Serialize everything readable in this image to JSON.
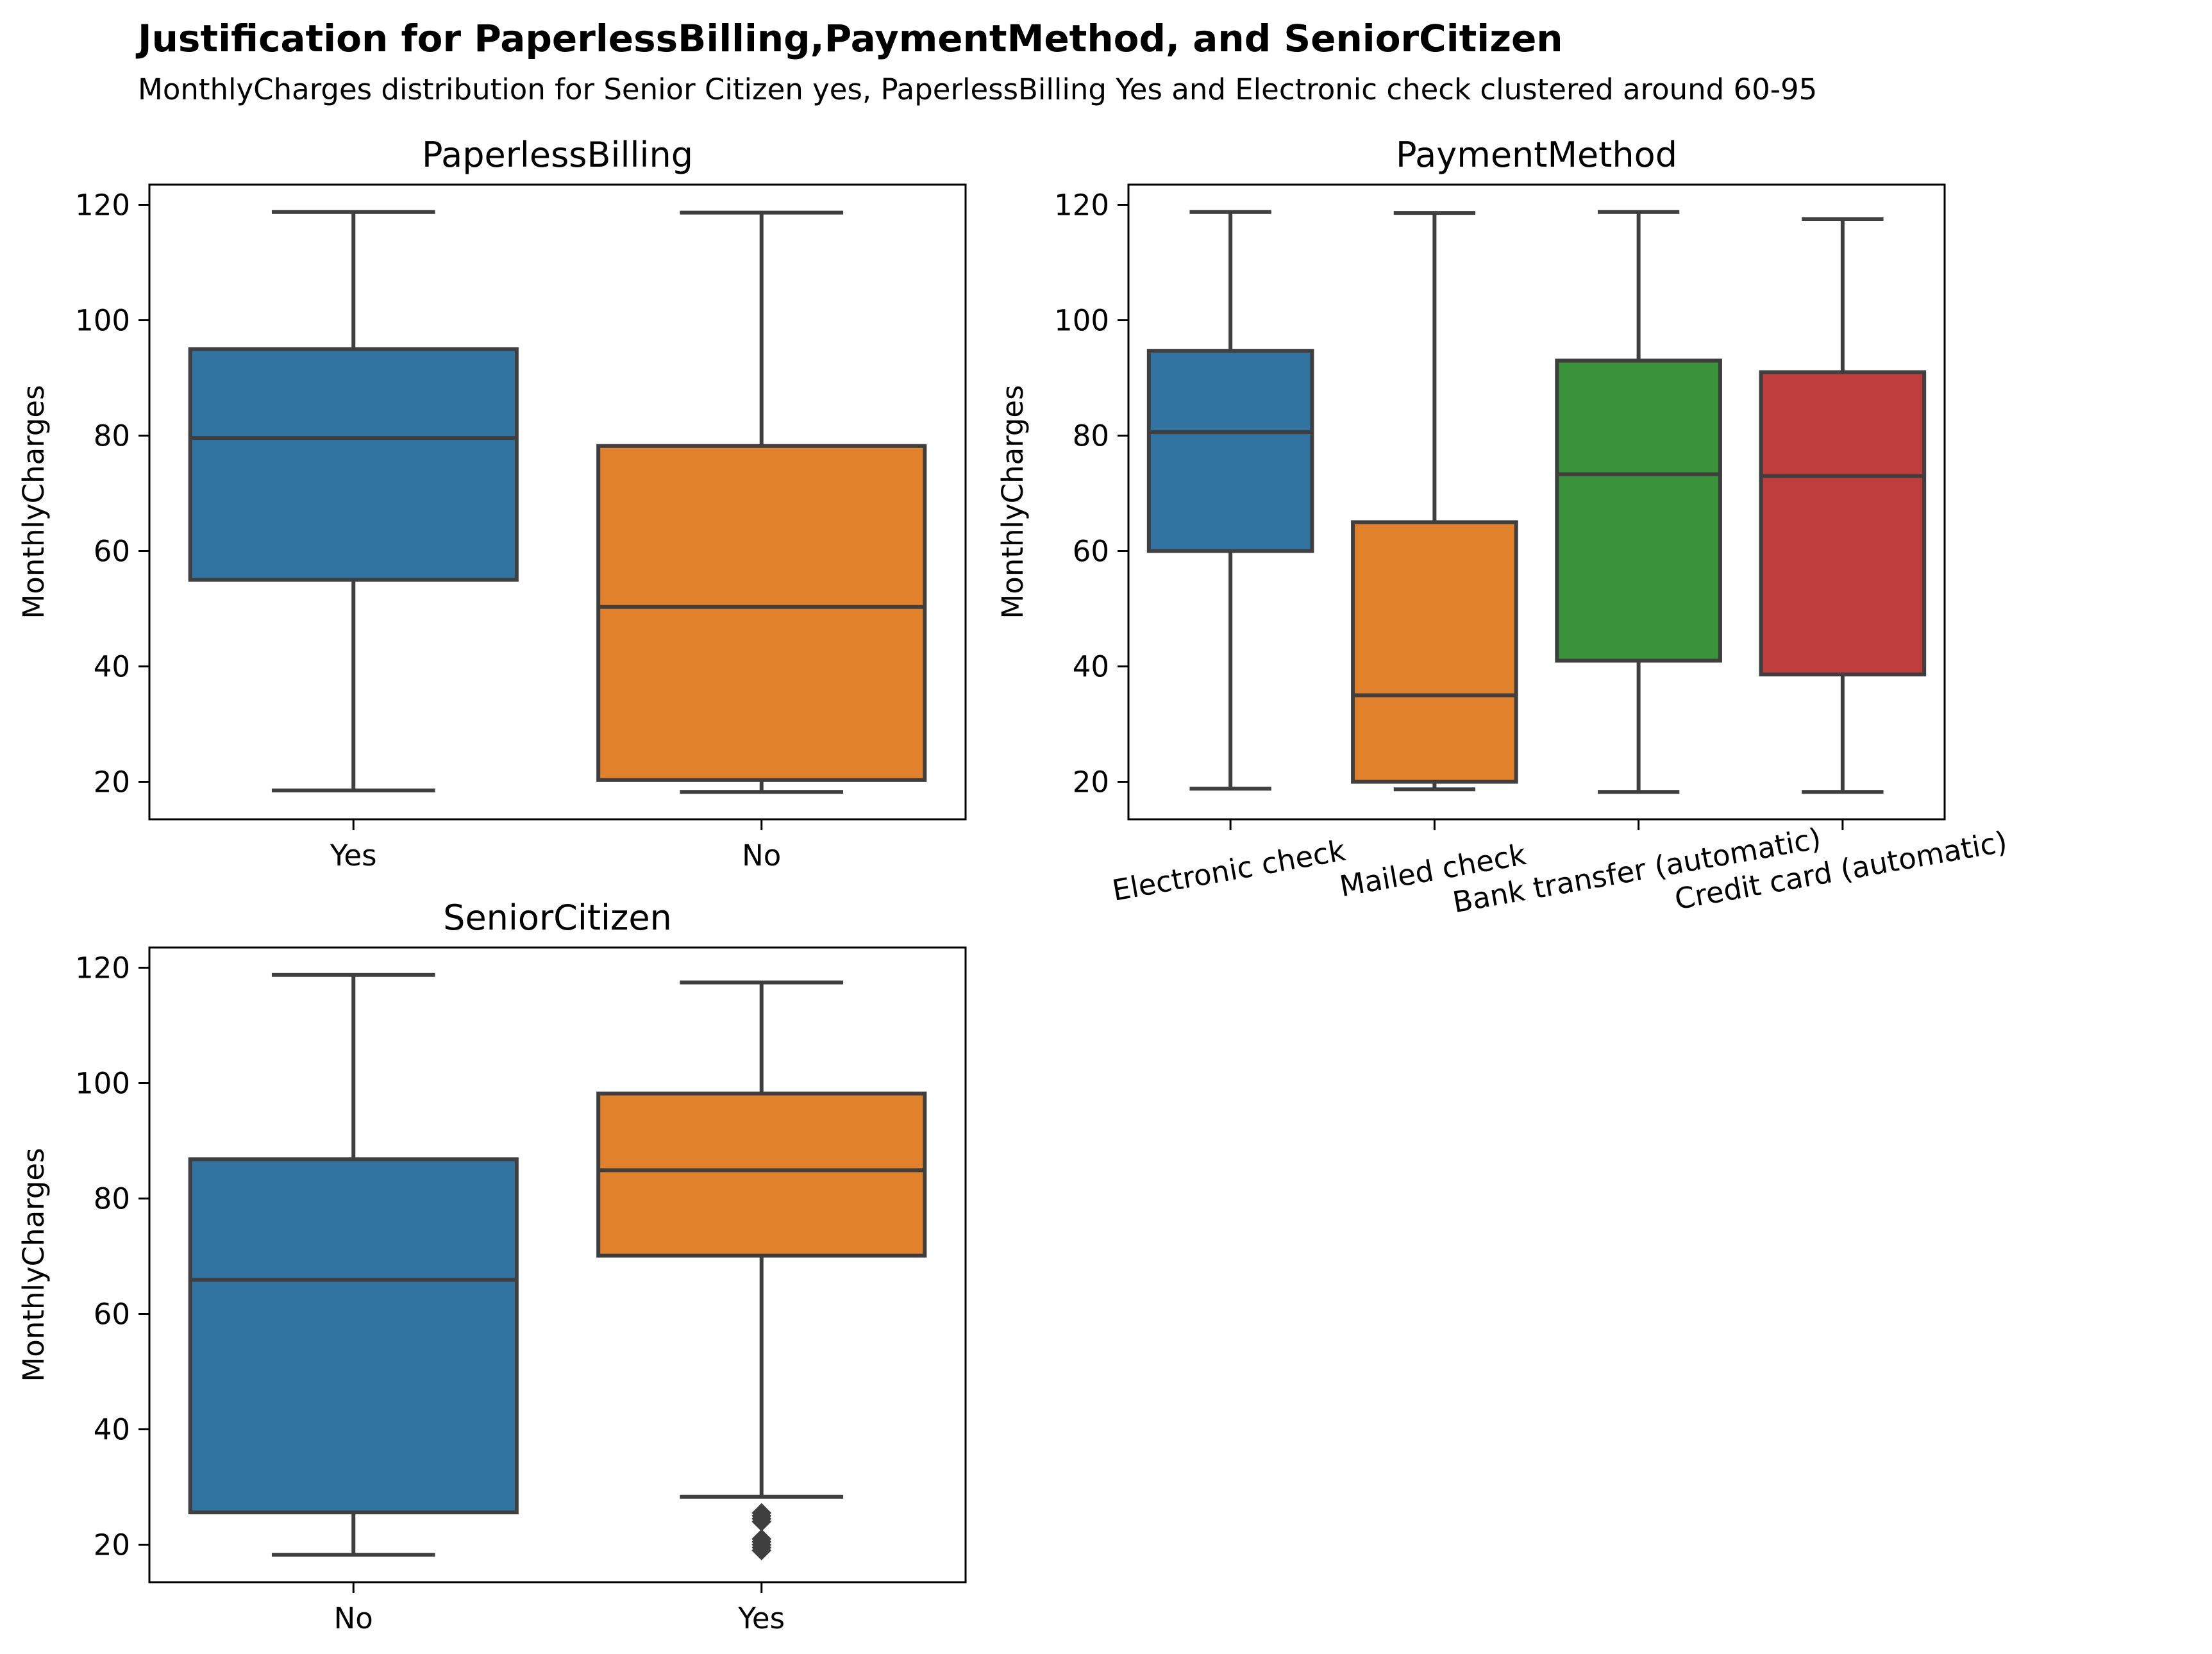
{
  "figure": {
    "title": "Justification for PaperlessBilling,PaymentMethod, and SeniorCitizen",
    "subtitle": "MonthlyCharges distribution for Senior Citizen yes, PaperlessBilling Yes and Electronic check clustered around 60-95"
  },
  "chart_data": [
    {
      "type": "box",
      "title": "PaperlessBilling",
      "xlabel": "",
      "ylabel": "MonthlyCharges",
      "ylim": [
        13.5,
        123.5
      ],
      "yticks": [
        20,
        40,
        60,
        80,
        100,
        120
      ],
      "xtick_rotation": 0,
      "categories": [
        "Yes",
        "No"
      ],
      "colors": [
        "#3274a1",
        "#e1812c"
      ],
      "boxes": [
        {
          "whisker_low": 18.5,
          "q1": 55.0,
          "median": 79.6,
          "q3": 95.0,
          "whisker_high": 118.75,
          "outliers": []
        },
        {
          "whisker_low": 18.25,
          "q1": 20.3,
          "median": 50.3,
          "q3": 78.2,
          "whisker_high": 118.65,
          "outliers": []
        }
      ]
    },
    {
      "type": "box",
      "title": "PaymentMethod",
      "xlabel": "",
      "ylabel": "MonthlyCharges",
      "ylim": [
        13.5,
        123.5
      ],
      "yticks": [
        20,
        40,
        60,
        80,
        100,
        120
      ],
      "xtick_rotation": -10,
      "categories": [
        "Electronic check",
        "Mailed check",
        "Bank transfer (automatic)",
        "Credit card (automatic)"
      ],
      "colors": [
        "#3274a1",
        "#e1812c",
        "#3a923a",
        "#c03d3e"
      ],
      "boxes": [
        {
          "whisker_low": 18.8,
          "q1": 60.0,
          "median": 80.6,
          "q3": 94.7,
          "whisker_high": 118.75,
          "outliers": []
        },
        {
          "whisker_low": 18.7,
          "q1": 20.0,
          "median": 35.0,
          "q3": 65.0,
          "whisker_high": 118.6,
          "outliers": []
        },
        {
          "whisker_low": 18.25,
          "q1": 41.0,
          "median": 73.3,
          "q3": 93.0,
          "whisker_high": 118.75,
          "outliers": []
        },
        {
          "whisker_low": 18.25,
          "q1": 38.6,
          "median": 73.0,
          "q3": 91.0,
          "whisker_high": 117.5,
          "outliers": []
        }
      ]
    },
    {
      "type": "box",
      "title": "SeniorCitizen",
      "xlabel": "",
      "ylabel": "MonthlyCharges",
      "ylim": [
        13.5,
        123.5
      ],
      "yticks": [
        20,
        40,
        60,
        80,
        100,
        120
      ],
      "xtick_rotation": 0,
      "categories": [
        "No",
        "Yes"
      ],
      "colors": [
        "#3274a1",
        "#e1812c"
      ],
      "boxes": [
        {
          "whisker_low": 18.25,
          "q1": 25.6,
          "median": 65.9,
          "q3": 86.8,
          "whisker_high": 118.75,
          "outliers": []
        },
        {
          "whisker_low": 28.3,
          "q1": 70.1,
          "median": 84.9,
          "q3": 98.2,
          "whisker_high": 117.45,
          "outliers": [
            19.0,
            19.5,
            20.0,
            20.5,
            21.0,
            24.0,
            24.5,
            25.0,
            25.5
          ]
        }
      ]
    }
  ]
}
